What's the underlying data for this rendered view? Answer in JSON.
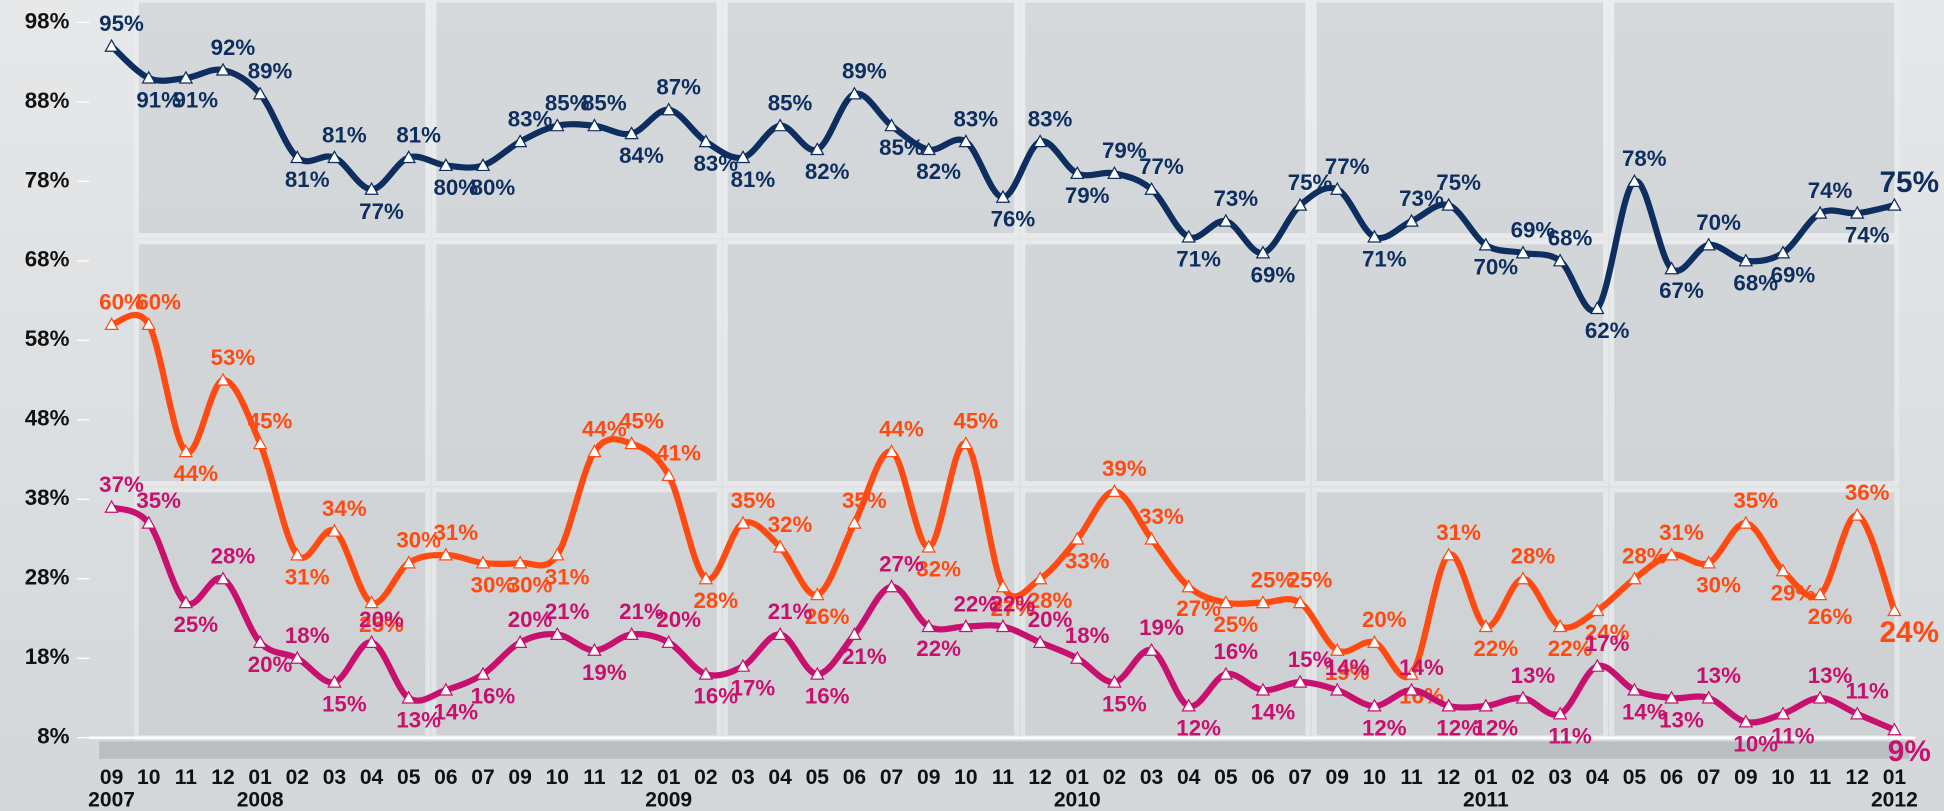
{
  "chart_data": {
    "type": "line",
    "categories": [
      "09",
      "10",
      "11",
      "12",
      "01",
      "02",
      "03",
      "04",
      "05",
      "06",
      "07",
      "09",
      "10",
      "11",
      "12",
      "01",
      "02",
      "03",
      "04",
      "05",
      "06",
      "07",
      "09",
      "10",
      "11",
      "12",
      "01",
      "02",
      "03",
      "04",
      "05",
      "06",
      "07",
      "09",
      "10",
      "11",
      "12",
      "01",
      "02",
      "03",
      "04",
      "05",
      "06",
      "07",
      "09",
      "10",
      "11",
      "12",
      "01"
    ],
    "year_labels": [
      {
        "label": "2007",
        "at": 0
      },
      {
        "label": "2008",
        "at": 4
      },
      {
        "label": "2009",
        "at": 15
      },
      {
        "label": "2010",
        "at": 26
      },
      {
        "label": "2011",
        "at": 37
      },
      {
        "label": "2012",
        "at": 48
      }
    ],
    "series": [
      {
        "color": "#0d2e5e",
        "values": [
          95,
          91,
          91,
          92,
          89,
          81,
          81,
          77,
          81,
          80,
          80,
          83,
          85,
          85,
          84,
          87,
          83,
          81,
          85,
          82,
          89,
          85,
          82,
          83,
          76,
          83,
          79,
          79,
          77,
          71,
          73,
          69,
          75,
          77,
          71,
          73,
          75,
          70,
          69,
          68,
          62,
          78,
          67,
          70,
          68,
          69,
          74,
          74,
          75
        ],
        "value_labels": [
          "95%",
          "91%",
          "91%",
          "92%",
          "89%",
          "81%",
          "81%",
          "77%",
          "81%",
          "80%",
          "80%",
          "83%",
          "85%",
          "85%",
          "84%",
          "87%",
          "83%",
          "81%",
          "85%",
          "82%",
          "89%",
          "85%",
          "82%",
          "83%",
          "76%",
          "83%",
          "79%",
          "79%",
          "77%",
          "71%",
          "73%",
          "69%",
          "75%",
          "77%",
          "71%",
          "73%",
          "75%",
          "70%",
          "69%",
          "68%",
          "62%",
          "78%",
          "67%",
          "70%",
          "68%",
          "69%",
          "74%",
          "74%",
          "75%"
        ]
      },
      {
        "color": "#ff4a12",
        "values": [
          60,
          60,
          44,
          53,
          45,
          31,
          34,
          25,
          30,
          31,
          30,
          30,
          31,
          44,
          45,
          41,
          28,
          35,
          32,
          26,
          35,
          44,
          32,
          45,
          27,
          28,
          33,
          39,
          33,
          27,
          25,
          25,
          25,
          19,
          20,
          16,
          31,
          22,
          28,
          22,
          24,
          28,
          31,
          30,
          35,
          29,
          26,
          36,
          24
        ],
        "value_labels": [
          "60%",
          "60%",
          "44%",
          "53%",
          "45%",
          "31%",
          "34%",
          "25%",
          "30%",
          "31%",
          "30%",
          "30%",
          "31%",
          "44%",
          "45%",
          "41%",
          "28%",
          "35%",
          "32%",
          "26%",
          "35%",
          "44%",
          "32%",
          "45%",
          "27%",
          "28%",
          "33%",
          "39%",
          "33%",
          "27%",
          "25%",
          "25%",
          "25%",
          "19%",
          "20%",
          "16%",
          "31%",
          "22%",
          "28%",
          "22%",
          "24%",
          "28%",
          "31%",
          "30%",
          "35%",
          "29%",
          "26%",
          "36%",
          "24%"
        ]
      },
      {
        "color": "#c8106e",
        "values": [
          37,
          35,
          25,
          28,
          20,
          18,
          15,
          20,
          13,
          14,
          16,
          20,
          21,
          19,
          21,
          20,
          16,
          17,
          21,
          16,
          21,
          27,
          22,
          22,
          22,
          20,
          18,
          15,
          19,
          12,
          16,
          14,
          15,
          14,
          12,
          14,
          12,
          12,
          13,
          11,
          17,
          14,
          13,
          13,
          10,
          11,
          13,
          11,
          9
        ],
        "value_labels": [
          "37%",
          "35%",
          "25%",
          "28%",
          "20%",
          "18%",
          "15%",
          "20%",
          "13%",
          "14%",
          "16%",
          "20%",
          "21%",
          "19%",
          "21%",
          "20%",
          "16%",
          "17%",
          "21%",
          "16%",
          "21%",
          "27%",
          "22%",
          "22%",
          "22%",
          "20%",
          "18%",
          "15%",
          "19%",
          "12%",
          "16%",
          "14%",
          "15%",
          "14%",
          "12%",
          "14%",
          "12%",
          "12%",
          "13%",
          "11%",
          "17%",
          "14%",
          "13%",
          "13%",
          "10%",
          "11%",
          "13%",
          "11%",
          "9%"
        ]
      }
    ],
    "ylim": [
      8,
      98
    ],
    "yticks": [
      {
        "value": 8,
        "label": "8%"
      },
      {
        "value": 18,
        "label": "18%"
      },
      {
        "value": 28,
        "label": "28%"
      },
      {
        "value": 38,
        "label": "38%"
      },
      {
        "value": 48,
        "label": "48%"
      },
      {
        "value": 58,
        "label": "58%"
      },
      {
        "value": 68,
        "label": "68%"
      },
      {
        "value": 78,
        "label": "78%"
      },
      {
        "value": 88,
        "label": "88%"
      },
      {
        "value": 98,
        "label": "98%"
      }
    ]
  }
}
